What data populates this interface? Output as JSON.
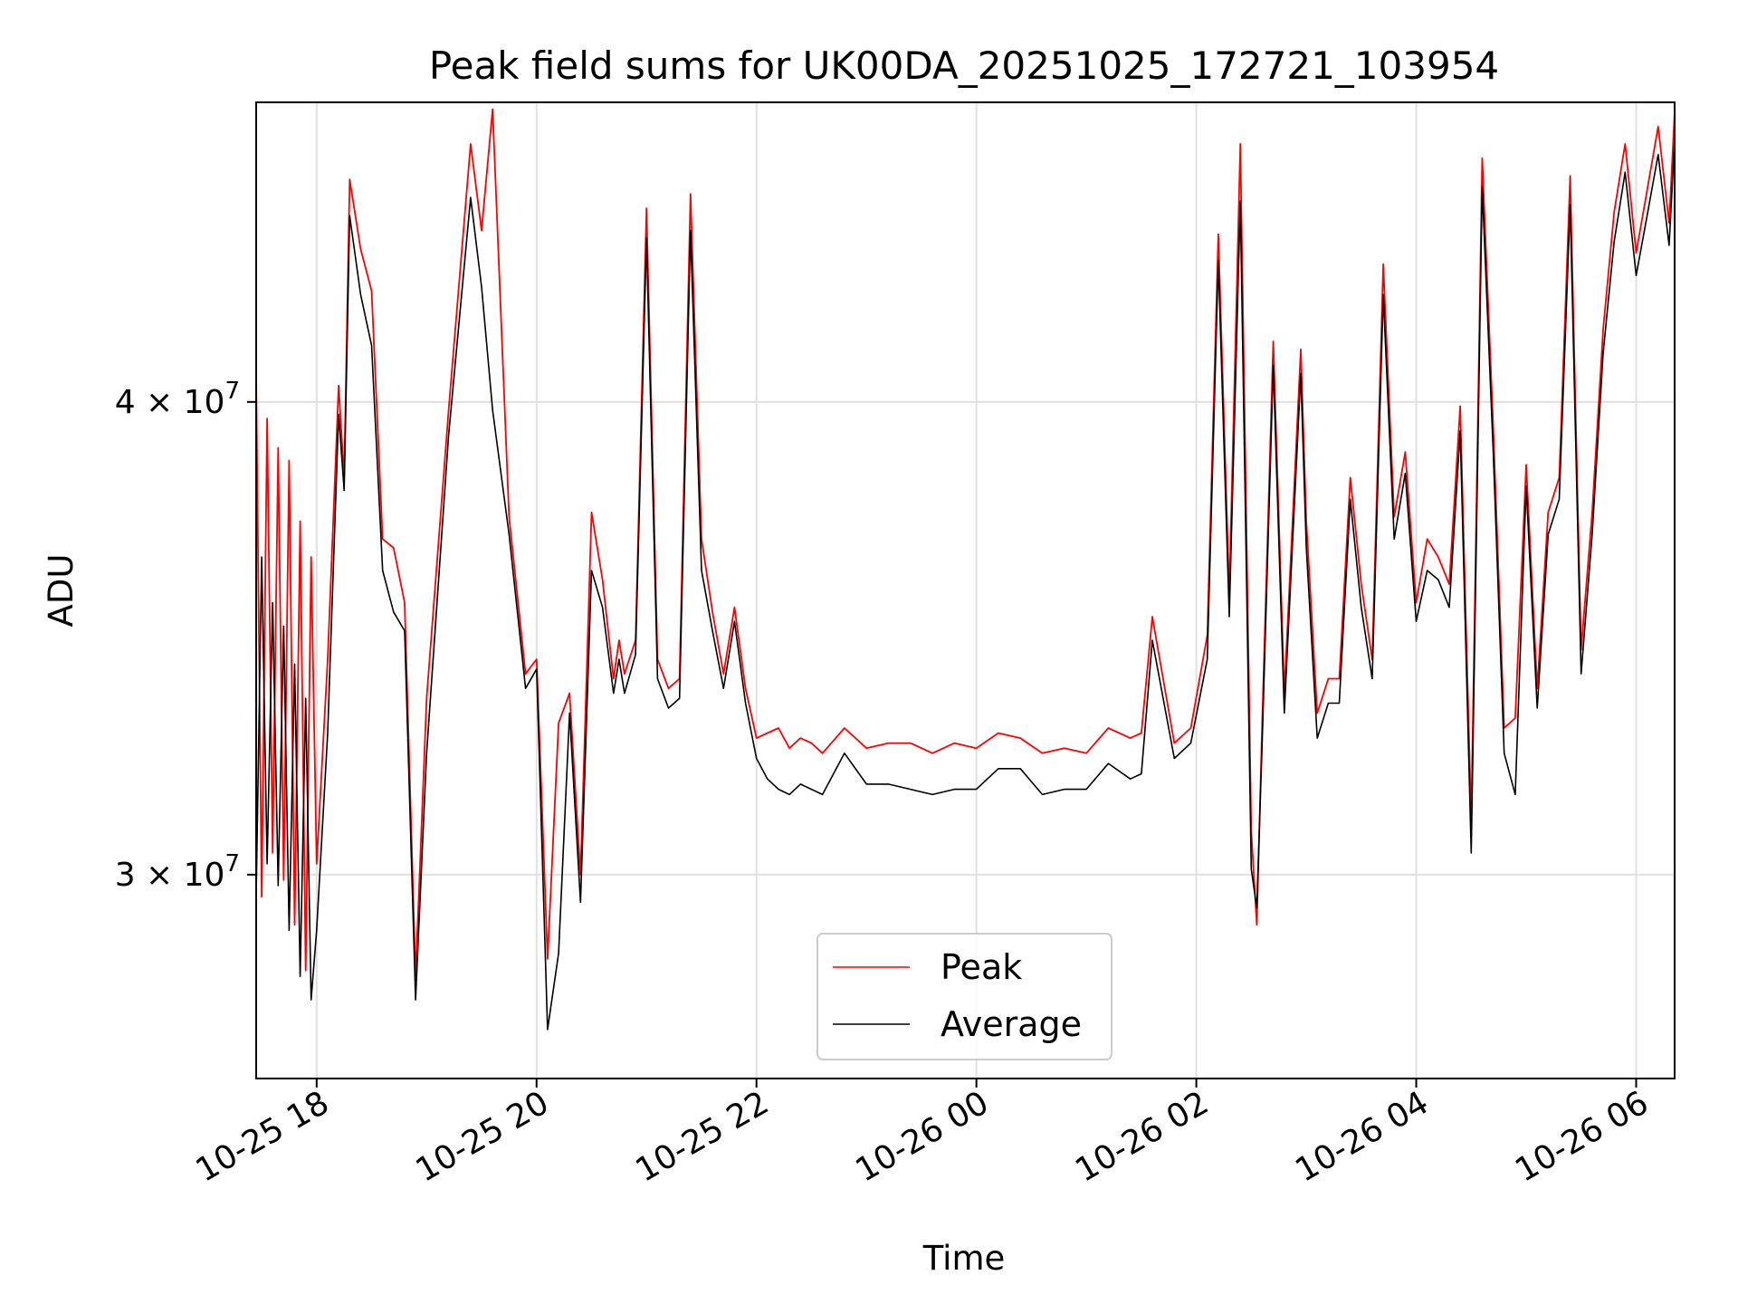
{
  "chart_data": {
    "type": "line",
    "title": "Peak field sums for UK00DA_20251025_172721_103954",
    "xlabel": "Time",
    "ylabel": "ADU",
    "yscale": "log",
    "ylim": [
      26500000,
      48000000
    ],
    "xlim_hours": [
      17.45,
      30.35
    ],
    "grid": true,
    "legend_position": "lower center",
    "x_ticks": [
      {
        "hour": 18,
        "label": "10-25 18"
      },
      {
        "hour": 20,
        "label": "10-25 20"
      },
      {
        "hour": 22,
        "label": "10-25 22"
      },
      {
        "hour": 24,
        "label": "10-26 00"
      },
      {
        "hour": 26,
        "label": "10-26 02"
      },
      {
        "hour": 28,
        "label": "10-26 04"
      },
      {
        "hour": 30,
        "label": "10-26 06"
      }
    ],
    "y_ticks": [
      {
        "value": 30000000,
        "mantissa": "3",
        "exponent": "7"
      },
      {
        "value": 40000000,
        "mantissa": "4",
        "exponent": "7"
      }
    ],
    "series": [
      {
        "name": "Peak",
        "color": "#ff0000",
        "x": [
          17.45,
          17.5,
          17.55,
          17.6,
          17.65,
          17.7,
          17.75,
          17.8,
          17.85,
          17.9,
          17.95,
          18.0,
          18.1,
          18.2,
          18.25,
          18.3,
          18.4,
          18.5,
          18.6,
          18.7,
          18.8,
          18.9,
          19.0,
          19.2,
          19.4,
          19.5,
          19.6,
          19.75,
          19.9,
          20.0,
          20.1,
          20.2,
          20.3,
          20.4,
          20.5,
          20.6,
          20.7,
          20.75,
          20.8,
          20.9,
          21.0,
          21.1,
          21.2,
          21.3,
          21.4,
          21.5,
          21.6,
          21.7,
          21.8,
          21.9,
          22.0,
          22.1,
          22.2,
          22.3,
          22.4,
          22.5,
          22.6,
          22.8,
          23.0,
          23.2,
          23.4,
          23.6,
          23.8,
          24.0,
          24.2,
          24.4,
          24.6,
          24.8,
          25.0,
          25.2,
          25.4,
          25.5,
          25.6,
          25.8,
          25.95,
          26.1,
          26.2,
          26.3,
          26.4,
          26.5,
          26.55,
          26.6,
          26.7,
          26.8,
          26.95,
          27.0,
          27.1,
          27.2,
          27.3,
          27.4,
          27.5,
          27.6,
          27.7,
          27.8,
          27.9,
          28.0,
          28.1,
          28.2,
          28.3,
          28.4,
          28.5,
          28.6,
          28.7,
          28.8,
          28.9,
          29.0,
          29.1,
          29.2,
          29.3,
          29.4,
          29.5,
          29.6,
          29.7,
          29.8,
          29.9,
          30.0,
          30.1,
          30.2,
          30.3,
          30.35
        ],
        "values": [
          40600000,
          29600000,
          39600000,
          30400000,
          38900000,
          29900000,
          38600000,
          29100000,
          37200000,
          28300000,
          36400000,
          30200000,
          34200000,
          40400000,
          38200000,
          45800000,
          43900000,
          42800000,
          36800000,
          36600000,
          35400000,
          28200000,
          33400000,
          39800000,
          46800000,
          44400000,
          47800000,
          37300000,
          33900000,
          34200000,
          28500000,
          32900000,
          33500000,
          30000000,
          37400000,
          35900000,
          33800000,
          34600000,
          33900000,
          34600000,
          45000000,
          34200000,
          33600000,
          33800000,
          45400000,
          36800000,
          35200000,
          33900000,
          35300000,
          33600000,
          32600000,
          32700000,
          32800000,
          32400000,
          32600000,
          32500000,
          32300000,
          32800000,
          32400000,
          32500000,
          32500000,
          32300000,
          32500000,
          32400000,
          32700000,
          32600000,
          32300000,
          32400000,
          32300000,
          32800000,
          32600000,
          32700000,
          35100000,
          32500000,
          32800000,
          34700000,
          44300000,
          35600000,
          46800000,
          30800000,
          29100000,
          33000000,
          41500000,
          33500000,
          41300000,
          37200000,
          33100000,
          33800000,
          33800000,
          38200000,
          35800000,
          34200000,
          43500000,
          37300000,
          38800000,
          35400000,
          36800000,
          36400000,
          35800000,
          39900000,
          31000000,
          46400000,
          39400000,
          32800000,
          33000000,
          38500000,
          33600000,
          37400000,
          38200000,
          45900000,
          34400000,
          37400000,
          41800000,
          44900000,
          46800000,
          43800000,
          45500000,
          47300000,
          44600000,
          47700000
        ]
      },
      {
        "name": "Average",
        "color": "#000000",
        "x": [
          17.45,
          17.5,
          17.55,
          17.6,
          17.65,
          17.7,
          17.75,
          17.8,
          17.85,
          17.9,
          17.95,
          18.0,
          18.1,
          18.2,
          18.25,
          18.3,
          18.4,
          18.5,
          18.6,
          18.7,
          18.8,
          18.9,
          19.0,
          19.2,
          19.4,
          19.5,
          19.6,
          19.75,
          19.9,
          20.0,
          20.1,
          20.2,
          20.3,
          20.4,
          20.5,
          20.6,
          20.7,
          20.75,
          20.8,
          20.9,
          21.0,
          21.1,
          21.2,
          21.3,
          21.4,
          21.5,
          21.6,
          21.7,
          21.8,
          21.9,
          22.0,
          22.1,
          22.2,
          22.3,
          22.4,
          22.5,
          22.6,
          22.8,
          23.0,
          23.2,
          23.4,
          23.6,
          23.8,
          24.0,
          24.2,
          24.4,
          24.6,
          24.8,
          25.0,
          25.2,
          25.4,
          25.5,
          25.6,
          25.8,
          25.95,
          26.1,
          26.2,
          26.3,
          26.4,
          26.5,
          26.55,
          26.6,
          26.7,
          26.8,
          26.95,
          27.0,
          27.1,
          27.2,
          27.3,
          27.4,
          27.5,
          27.6,
          27.7,
          27.8,
          27.9,
          28.0,
          28.1,
          28.2,
          28.3,
          28.4,
          28.5,
          28.6,
          28.7,
          28.8,
          28.9,
          29.0,
          29.1,
          29.2,
          29.3,
          29.4,
          29.5,
          29.6,
          29.7,
          29.8,
          29.9,
          30.0,
          30.1,
          30.2,
          30.3,
          30.35
        ],
        "values": [
          29600000,
          36400000,
          30200000,
          35400000,
          29800000,
          34900000,
          29000000,
          34100000,
          28200000,
          33400000,
          27800000,
          29000000,
          32700000,
          39700000,
          37900000,
          44800000,
          42700000,
          41400000,
          36100000,
          35200000,
          34800000,
          27800000,
          32300000,
          39200000,
          45300000,
          42900000,
          39800000,
          36900000,
          33600000,
          34000000,
          27300000,
          28600000,
          33100000,
          29500000,
          36100000,
          35300000,
          33500000,
          34200000,
          33500000,
          34300000,
          44200000,
          33800000,
          33200000,
          33400000,
          44400000,
          36100000,
          34800000,
          33600000,
          35000000,
          33300000,
          32200000,
          31800000,
          31600000,
          31500000,
          31700000,
          31600000,
          31500000,
          32300000,
          31700000,
          31700000,
          31600000,
          31500000,
          31600000,
          31600000,
          32000000,
          32000000,
          31500000,
          31600000,
          31600000,
          32100000,
          31800000,
          31900000,
          34600000,
          32200000,
          32500000,
          34200000,
          43600000,
          35100000,
          45200000,
          30100000,
          29400000,
          32600000,
          40900000,
          33100000,
          40700000,
          36600000,
          32600000,
          33300000,
          33300000,
          37700000,
          35300000,
          33800000,
          42700000,
          36800000,
          38300000,
          35000000,
          36100000,
          35900000,
          35300000,
          39300000,
          30400000,
          45600000,
          38800000,
          32300000,
          31500000,
          38000000,
          33200000,
          36900000,
          37700000,
          45100000,
          33900000,
          36900000,
          41200000,
          44100000,
          46000000,
          43200000,
          44800000,
          46500000,
          44000000,
          46900000
        ]
      }
    ]
  }
}
